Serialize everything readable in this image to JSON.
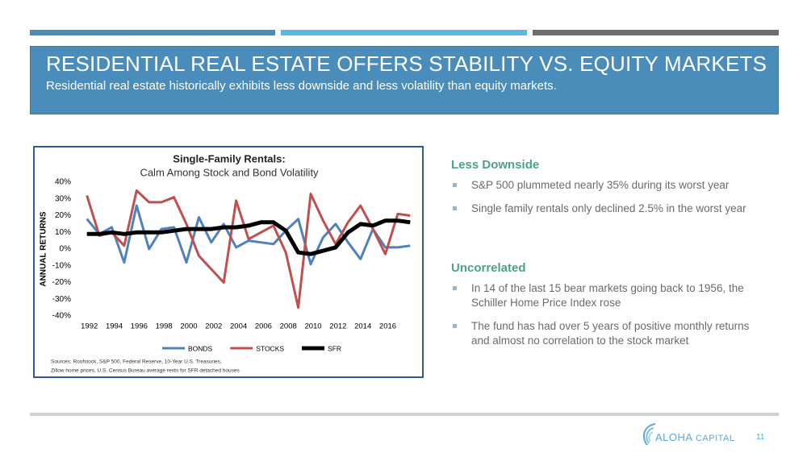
{
  "header": {
    "title": "RESIDENTIAL REAL ESTATE OFFERS STABILITY VS. EQUITY MARKETS",
    "subtitle": "Residential real estate historically exhibits less downside and less volatility than equity markets."
  },
  "chart_data": {
    "type": "line",
    "title": "Single-Family Rentals:",
    "subtitle": "Calm Among Stock and Bond Volatility",
    "y_label": "ANNUAL RETURNS",
    "x": [
      1992,
      1993,
      1994,
      1995,
      1996,
      1997,
      1998,
      1999,
      2000,
      2001,
      2002,
      2003,
      2004,
      2005,
      2006,
      2007,
      2008,
      2009,
      2010,
      2011,
      2012,
      2013,
      2014,
      2015,
      2016,
      2017,
      2018
    ],
    "xlim": [
      1991.5,
      2018.5
    ],
    "xticks": [
      1992,
      1994,
      1996,
      1998,
      2000,
      2002,
      2004,
      2006,
      2008,
      2010,
      2012,
      2014,
      2016
    ],
    "ylim": [
      -40,
      40
    ],
    "yticks": [
      {
        "value": 40,
        "label": "40%"
      },
      {
        "value": 30,
        "label": "30%"
      },
      {
        "value": 20,
        "label": "20%"
      },
      {
        "value": 10,
        "label": "10%"
      },
      {
        "value": 0,
        "label": "0%"
      },
      {
        "value": -10,
        "label": "-10%"
      },
      {
        "value": -20,
        "label": "-20%"
      },
      {
        "value": -30,
        "label": "-30%"
      },
      {
        "value": -40,
        "label": "-40%"
      }
    ],
    "grid": false,
    "legend": "bottom",
    "series": [
      {
        "name": "BONDS",
        "color": "#4f81bd",
        "width": 3,
        "values": [
          18,
          9,
          13,
          -8,
          26,
          0,
          12,
          13,
          -8,
          19,
          4,
          15,
          1,
          5,
          4,
          3,
          11,
          18,
          -9,
          7,
          15,
          4,
          -6,
          12,
          1,
          1,
          2
        ]
      },
      {
        "name": "STOCKS",
        "color": "#c0504d",
        "width": 3,
        "values": [
          32,
          8,
          10,
          2,
          35,
          28,
          28,
          31,
          15,
          -4,
          -12,
          -20,
          29,
          6,
          10,
          14,
          -2,
          -35,
          33,
          17,
          3,
          16,
          26,
          12,
          -3,
          21,
          20
        ]
      },
      {
        "name": "SFR",
        "color": "#000000",
        "width": 5,
        "values": [
          9,
          9,
          10,
          9,
          10,
          10,
          10,
          11,
          12,
          12,
          12,
          13,
          13,
          14,
          16,
          16,
          11,
          -2,
          -3,
          -1,
          1,
          10,
          15,
          14,
          17,
          17,
          16
        ]
      }
    ],
    "source": [
      "Sources: Roofstock, S&P 500, Federal Reserve, 10-Year U.S. Treasuries,",
      "Zillow home prices, U.S. Census Bureau average rents for SFR detached houses"
    ]
  },
  "sections": [
    {
      "heading": "Less Downside",
      "bullets": [
        "S&P 500 plummeted nearly 35% during its worst year",
        "Single family rentals only declined 2.5% in the worst year"
      ]
    },
    {
      "heading": "Uncorrelated",
      "bullets": [
        "In 14 of the last 15 bear markets going back to 1956, the Schiller Home Price Index rose",
        "The fund has had over 5 years of positive monthly returns and almost no correlation to the stock market"
      ]
    }
  ],
  "footer": {
    "logo_name": "ALOHA",
    "logo_suffix": "CAPITAL",
    "page": "11"
  }
}
